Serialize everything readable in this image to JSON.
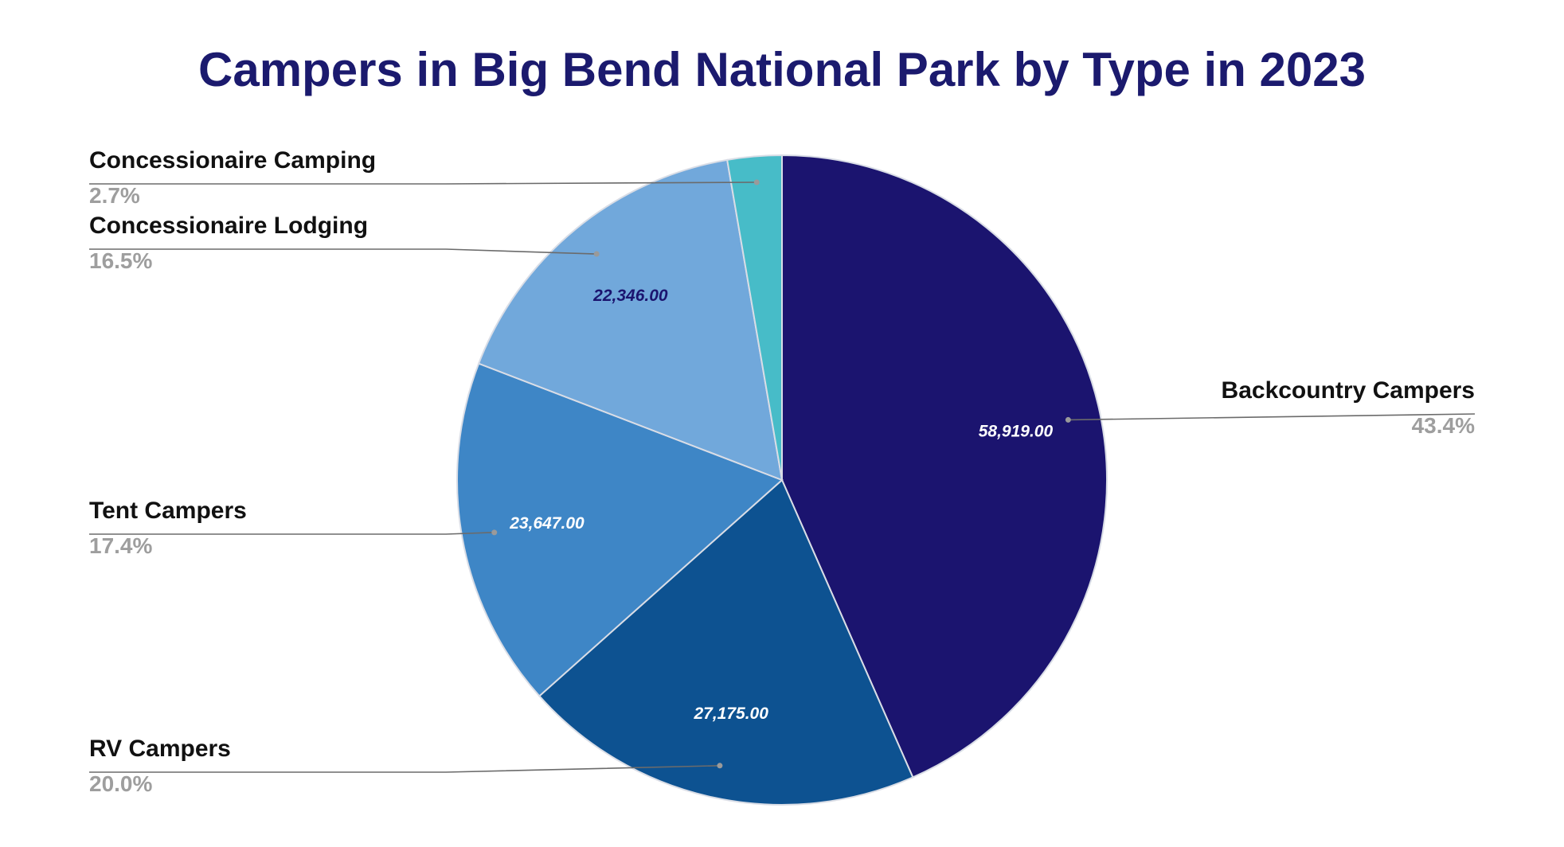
{
  "chart_data": {
    "type": "pie",
    "title": "Campers in Big Bend National Park by Type in 2023",
    "slices": [
      {
        "label": "Backcountry Campers",
        "value": 58919,
        "value_label": "58,919.00",
        "percent_label": "43.4%",
        "color": "#1b146f",
        "value_label_color": "#ffffff"
      },
      {
        "label": "RV Campers",
        "value": 27175,
        "value_label": "27,175.00",
        "percent_label": "20.0%",
        "color": "#0d5291",
        "value_label_color": "#ffffff"
      },
      {
        "label": "Tent Campers",
        "value": 23647,
        "value_label": "23,647.00",
        "percent_label": "17.4%",
        "color": "#3e86c6",
        "value_label_color": "#ffffff"
      },
      {
        "label": "Concessionaire Lodging",
        "value": 22346,
        "value_label": "22,346.00",
        "percent_label": "16.5%",
        "color": "#71a8db",
        "value_label_color": "#1b146f"
      },
      {
        "label": "Concessionaire Camping",
        "value": 3664,
        "value_label": "",
        "percent_label": "2.7%",
        "color": "#47bcc8",
        "value_label_color": "#ffffff"
      }
    ],
    "start_angle": "12 o'clock",
    "direction": "clockwise",
    "legend": "leader-line labels beside slices"
  }
}
